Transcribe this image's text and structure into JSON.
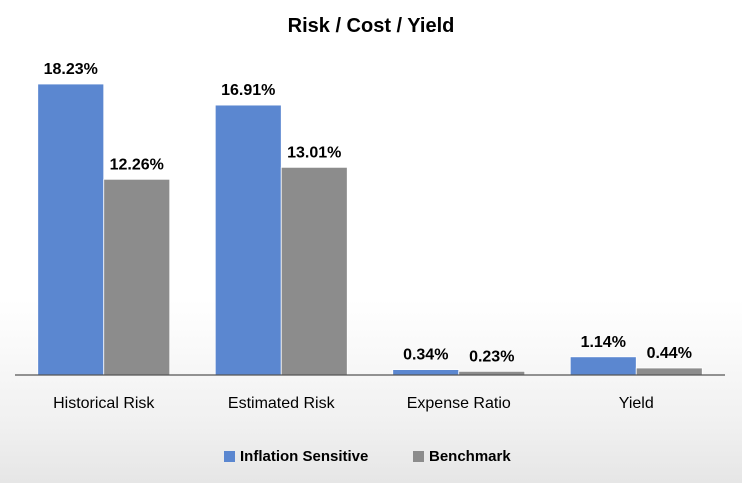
{
  "chart_data": {
    "type": "bar",
    "title": "Risk / Cost / Yield",
    "categories": [
      "Historical Risk",
      "Estimated Risk",
      "Expense Ratio",
      "Yield"
    ],
    "series": [
      {
        "name": "Inflation Sensitive",
        "color": "#5b87d0",
        "values": [
          18.23,
          16.91,
          0.34,
          1.14
        ],
        "labels": [
          "18.23%",
          "16.91%",
          "0.34%",
          "1.14%"
        ]
      },
      {
        "name": "Benchmark",
        "color": "#8c8c8c",
        "values": [
          12.26,
          13.01,
          0.23,
          0.44
        ],
        "labels": [
          "12.26%",
          "13.01%",
          "0.23%",
          "0.44%"
        ]
      }
    ],
    "ylim": [
      0,
      18.23
    ],
    "grid": false,
    "legend_position": "bottom"
  }
}
